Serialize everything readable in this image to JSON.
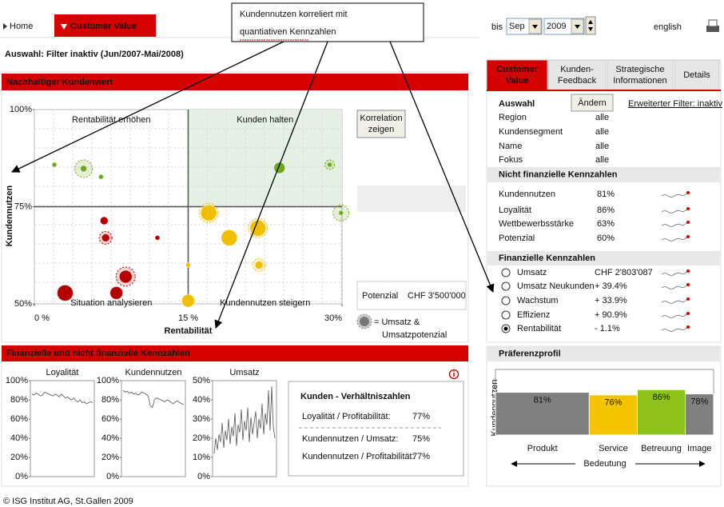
{
  "nav": {
    "home": "Home",
    "active_tab": "Customer Value",
    "date_label": "bis",
    "month": "Sep",
    "year": "2009",
    "language": "english"
  },
  "callout": [
    "Kundennutzen korreliert mit",
    "quantiativen Kennzahlen"
  ],
  "filter_status": "Auswahl: Filter inaktiv (Jun/2007-Mai/2008)",
  "scatter_panel": {
    "title": "Nachhaltiger Kundenwert",
    "chart": {
      "type": "scatter",
      "xlabel": "Rentabilität",
      "ylabel": "Kundennutzen",
      "xlim": [
        0,
        30
      ],
      "ylim": [
        50,
        100
      ],
      "xticks": [
        {
          "value": 0,
          "label": "0 %"
        },
        {
          "value": 15,
          "label": "15 %"
        },
        {
          "value": 30,
          "label": "30%"
        }
      ],
      "yticks": [
        {
          "value": 100,
          "label": "100%"
        },
        {
          "value": 75,
          "label": "75%"
        },
        {
          "value": 50,
          "label": "50%"
        }
      ],
      "quadrants": [
        "Rentabilität erhöhen",
        "Kunden halten",
        "Situation analysieren",
        "Kundennutzen steigern"
      ],
      "points": [
        {
          "x": 1.95,
          "y": 85.8,
          "size": 3,
          "ring": null,
          "color": "#6ea81e"
        },
        {
          "x": 4.8,
          "y": 84.8,
          "size": 4,
          "ring": 11,
          "color": "#6ea81e"
        },
        {
          "x": 6.5,
          "y": 82.7,
          "size": 3,
          "ring": null,
          "color": "#6ea81e"
        },
        {
          "x": 6.8,
          "y": 71.4,
          "size": 5,
          "ring": null,
          "color": "#b40000"
        },
        {
          "x": 6.95,
          "y": 67,
          "size": 5,
          "ring": 8,
          "color": "#b40000"
        },
        {
          "x": 12,
          "y": 67,
          "size": 3,
          "ring": null,
          "color": "#b40000"
        },
        {
          "x": 8.9,
          "y": 57,
          "size": 8,
          "ring": 12,
          "color": "#b40000"
        },
        {
          "x": 8,
          "y": 52.8,
          "size": 8,
          "ring": null,
          "color": "#b40000"
        },
        {
          "x": 3,
          "y": 52.8,
          "size": 10,
          "ring": null,
          "color": "#b40000"
        },
        {
          "x": 15,
          "y": 60,
          "size": 3,
          "ring": null,
          "color": "#f0c000"
        },
        {
          "x": 15,
          "y": 50.8,
          "size": 8,
          "ring": null,
          "color": "#f0c000"
        },
        {
          "x": 17,
          "y": 73.4,
          "size": 10,
          "ring": 12,
          "color": "#f0c000"
        },
        {
          "x": 19,
          "y": 67,
          "size": 10,
          "ring": null,
          "color": "#f0c000"
        },
        {
          "x": 21.8,
          "y": 69.5,
          "size": 10,
          "ring": 12,
          "color": "#f0c000"
        },
        {
          "x": 21.9,
          "y": 60,
          "size": 5,
          "ring": 8,
          "color": "#f0c000"
        },
        {
          "x": 23.9,
          "y": 85,
          "size": 7,
          "ring": null,
          "color": "#6ea81e"
        },
        {
          "x": 28.8,
          "y": 85.8,
          "size": 3,
          "ring": 6,
          "color": "#6ea81e"
        },
        {
          "x": 29.9,
          "y": 73.4,
          "size": 3,
          "ring": 10,
          "color": "#6ea81e"
        }
      ]
    },
    "button": [
      "Korrelation",
      "zeigen"
    ],
    "potential": {
      "label": "Potenzial",
      "value": "CHF 3'500'000"
    },
    "legend": [
      "= Umsatz &",
      "Umsatzpotenzial"
    ]
  },
  "kpi_panel": {
    "title": "Finanzielle und nicht finanzielle Kennzahlen",
    "mini_charts": [
      {
        "type": "line",
        "title": "Loyalität",
        "ylim": [
          0,
          100
        ],
        "yticks": [
          {
            "value": 100,
            "label": "100%"
          },
          {
            "value": 80,
            "label": "80%"
          },
          {
            "value": 60,
            "label": "60%"
          },
          {
            "value": 40,
            "label": "40%"
          },
          {
            "value": 20,
            "label": "20%"
          },
          {
            "value": 0,
            "label": "0%"
          }
        ],
        "values": [
          86,
          85,
          87,
          86,
          84,
          85,
          88,
          87,
          86,
          85,
          84,
          86,
          85,
          83,
          86,
          84,
          82,
          83,
          81,
          80,
          82,
          79,
          78,
          80,
          77,
          78,
          76,
          77,
          78,
          77
        ]
      },
      {
        "type": "line",
        "title": "Kundennutzen",
        "ylim": [
          0,
          100
        ],
        "yticks": [
          {
            "value": 100,
            "label": "100%"
          },
          {
            "value": 80,
            "label": "80%"
          },
          {
            "value": 60,
            "label": "60%"
          },
          {
            "value": 40,
            "label": "40%"
          },
          {
            "value": 20,
            "label": "20%"
          },
          {
            "value": 0,
            "label": "0%"
          }
        ],
        "values": [
          90,
          88,
          89,
          87,
          88,
          86,
          87,
          85,
          86,
          88,
          87,
          86,
          84,
          74,
          72,
          80,
          82,
          81,
          80,
          79,
          78,
          80,
          79,
          77,
          76,
          78,
          79,
          77,
          76,
          75
        ]
      },
      {
        "type": "line",
        "title": "Umsatz",
        "ylim": [
          0,
          50
        ],
        "yticks": [
          {
            "value": 50,
            "label": "50%"
          },
          {
            "value": 40,
            "label": "40%"
          },
          {
            "value": 30,
            "label": "30%"
          },
          {
            "value": 20,
            "label": "20%"
          },
          {
            "value": 10,
            "label": "10%"
          },
          {
            "value": 0,
            "label": "0%"
          }
        ],
        "values": [
          12,
          20,
          14,
          22,
          18,
          28,
          15,
          24,
          19,
          30,
          17,
          26,
          21,
          33,
          16,
          27,
          23,
          35,
          19,
          29,
          24,
          36,
          18,
          31,
          22,
          28,
          34,
          20,
          30,
          25,
          38,
          22,
          33,
          27,
          45,
          24,
          47,
          26,
          20
        ]
      }
    ],
    "ratios": {
      "title": "Kunden - Verhältniszahlen",
      "rows": [
        {
          "name": "Loyalität / Profitabilität:",
          "value": "77%"
        },
        {
          "name": "Kundennutzen / Umsatz:",
          "value": "75%"
        },
        {
          "name": "Kundennutzen / Profitabilität:",
          "value": "77%"
        }
      ]
    }
  },
  "side_panel": {
    "tabs": [
      [
        "Customer",
        "Value"
      ],
      [
        "Kunden-",
        "Feedback"
      ],
      [
        "Strategische",
        "Informationen"
      ],
      [
        "Details"
      ]
    ],
    "selection": {
      "title": "Auswahl",
      "button": "Ändern",
      "link": "Erweiterter Filter: inaktiv",
      "rows": [
        {
          "name": "Region",
          "value": "alle"
        },
        {
          "name": "Kundensegment",
          "value": "alle"
        },
        {
          "name": "Name",
          "value": "alle"
        },
        {
          "name": "Fokus",
          "value": "alle"
        }
      ]
    },
    "non_financial": {
      "title": "Nicht finanzielle Kennzahlen",
      "rows": [
        {
          "name": "Kundennutzen",
          "value": "81%"
        },
        {
          "name": "Loyalität",
          "value": "86%"
        },
        {
          "name": "Wettbewerbsstärke",
          "value": "63%"
        },
        {
          "name": "Potenzial",
          "value": "60%"
        }
      ]
    },
    "financial": {
      "title": "Finanzielle Kennzahlen",
      "rows": [
        {
          "name": "Umsatz",
          "value": "CHF 2'803'087"
        },
        {
          "name": "Umsatz Neukunden",
          "value": "+ 39.4%"
        },
        {
          "name": "Wachstum",
          "value": "+ 33.9%"
        },
        {
          "name": "Effizienz",
          "value": "+ 90.9%"
        },
        {
          "name": "Rentabilität",
          "value": "- 1.1%"
        }
      ]
    }
  },
  "preference": {
    "title": "Präferenzprofil",
    "chart": {
      "type": "bar",
      "ylabel": "Kundennutzen",
      "xlabel": "Bedeutung",
      "categories": [
        "Produkt",
        "Service",
        "Betreuung",
        "Image"
      ],
      "values": [
        81,
        76,
        86,
        78
      ],
      "value_labels": [
        "81%",
        "76%",
        "86%",
        "78%"
      ],
      "widths": [
        43,
        22,
        22,
        13
      ],
      "colors": [
        "#808080",
        "#f5c400",
        "#8cc21a",
        "#808080"
      ],
      "ylim": [
        0,
        100
      ]
    }
  },
  "footer": "© ISG Institut AG, St.Gallen 2009"
}
